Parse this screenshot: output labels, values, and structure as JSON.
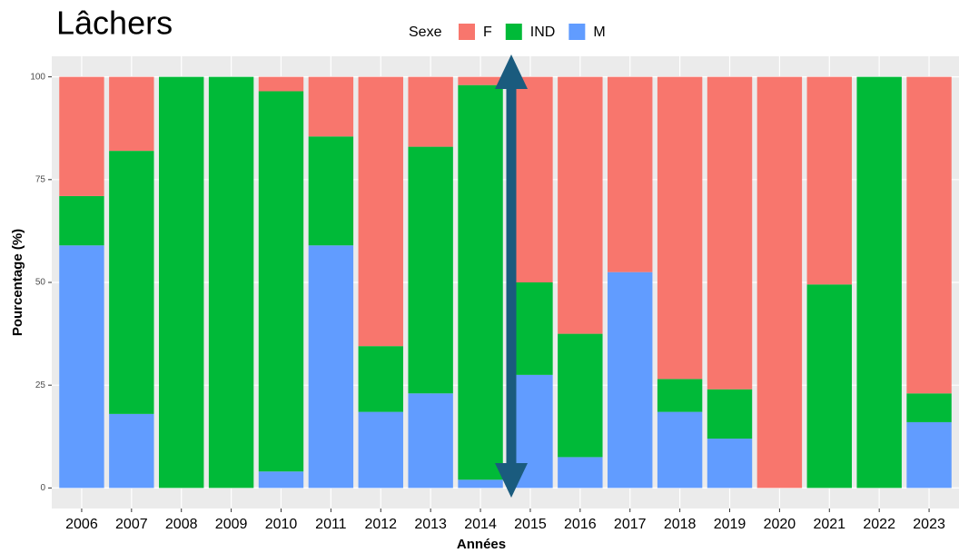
{
  "chart_data": {
    "type": "stacked_bar",
    "title": "Lâchers",
    "legend_title": "Sexe",
    "x_label": "Années",
    "y_label": "Pourcentage (%)",
    "categories": [
      "2006",
      "2007",
      "2008",
      "2009",
      "2010",
      "2011",
      "2012",
      "2013",
      "2014",
      "2015",
      "2016",
      "2017",
      "2018",
      "2019",
      "2020",
      "2021",
      "2022",
      "2023"
    ],
    "series": [
      {
        "name": "F",
        "color": "#f8766d",
        "values": [
          29,
          18,
          0,
          0,
          3.5,
          14.5,
          65.5,
          17,
          2,
          50,
          62.5,
          47.5,
          73.5,
          76,
          100,
          50.5,
          0,
          77
        ]
      },
      {
        "name": "IND",
        "color": "#00ba38",
        "values": [
          12,
          64,
          100,
          100,
          92.5,
          26.5,
          16,
          60,
          96,
          22.5,
          30,
          0,
          8,
          12,
          0,
          49.5,
          100,
          7
        ]
      },
      {
        "name": "M",
        "color": "#619cff",
        "values": [
          59,
          18,
          0,
          0,
          4,
          59,
          18.5,
          23,
          2,
          27.5,
          7.5,
          52.5,
          18.5,
          12,
          0,
          0,
          0,
          16
        ]
      }
    ],
    "ylim": [
      -5,
      105
    ],
    "yticks": [
      0,
      25,
      50,
      75,
      100
    ],
    "grid": true,
    "legend_position": "top"
  }
}
